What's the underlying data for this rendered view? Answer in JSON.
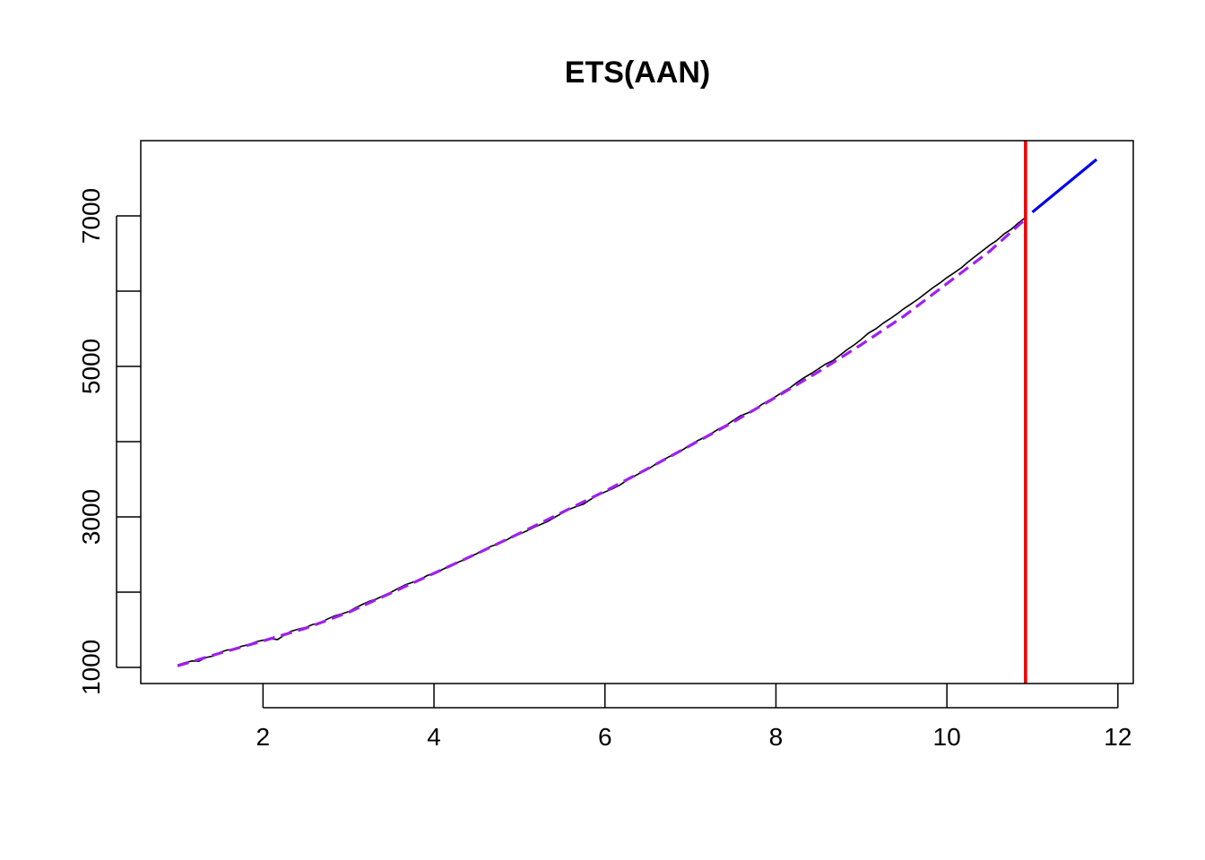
{
  "chart_data": {
    "type": "line",
    "title": "ETS(AAN)",
    "xlabel": "",
    "ylabel": "",
    "xlim": [
      0.57,
      12.18
    ],
    "ylim": [
      785,
      8000
    ],
    "x_ticks": [
      2,
      4,
      6,
      8,
      10,
      12
    ],
    "y_ticks": [
      1000,
      2000,
      3000,
      4000,
      5000,
      6000,
      7000
    ],
    "y_tick_labels": [
      "1000",
      "3000",
      "5000",
      "7000"
    ],
    "grid": false,
    "series": [
      {
        "role": "actuals",
        "color": "#000000",
        "style": "solid",
        "x": [
          1.0,
          1.08,
          1.17,
          1.25,
          1.33,
          1.42,
          1.5,
          1.58,
          1.67,
          1.75,
          1.83,
          1.92,
          2.0,
          2.08,
          2.17,
          2.25,
          2.33,
          2.42,
          2.5,
          2.58,
          2.67,
          2.75,
          2.83,
          2.92,
          3.0,
          3.08,
          3.17,
          3.25,
          3.33,
          3.42,
          3.5,
          3.58,
          3.67,
          3.75,
          3.83,
          3.92,
          4.0,
          4.08,
          4.17,
          4.25,
          4.33,
          4.42,
          4.5,
          4.58,
          4.67,
          4.75,
          4.83,
          4.92,
          5.0,
          5.08,
          5.17,
          5.25,
          5.33,
          5.42,
          5.5,
          5.58,
          5.67,
          5.75,
          5.83,
          5.92,
          6.0,
          6.08,
          6.17,
          6.25,
          6.33,
          6.42,
          6.5,
          6.58,
          6.67,
          6.75,
          6.83,
          6.92,
          7.0,
          7.08,
          7.17,
          7.25,
          7.33,
          7.42,
          7.5,
          7.58,
          7.67,
          7.75,
          7.83,
          7.92,
          8.0,
          8.08,
          8.17,
          8.25,
          8.33,
          8.42,
          8.5,
          8.58,
          8.67,
          8.75,
          8.83,
          8.92,
          9.0,
          9.08,
          9.17,
          9.25,
          9.33,
          9.42,
          9.5,
          9.58,
          9.67,
          9.75,
          9.83,
          9.92,
          10.0,
          10.08,
          10.17,
          10.25,
          10.33,
          10.42,
          10.5,
          10.58,
          10.67,
          10.75,
          10.83,
          10.92
        ],
        "y": [
          1030,
          1060,
          1085,
          1080,
          1130,
          1150,
          1200,
          1230,
          1240,
          1280,
          1300,
          1340,
          1360,
          1380,
          1370,
          1430,
          1480,
          1510,
          1530,
          1570,
          1590,
          1640,
          1680,
          1710,
          1740,
          1790,
          1840,
          1880,
          1910,
          1960,
          2000,
          2050,
          2100,
          2130,
          2160,
          2220,
          2250,
          2290,
          2340,
          2380,
          2420,
          2470,
          2510,
          2560,
          2610,
          2640,
          2680,
          2740,
          2770,
          2810,
          2860,
          2900,
          2940,
          3000,
          3050,
          3100,
          3140,
          3170,
          3230,
          3290,
          3330,
          3370,
          3420,
          3480,
          3530,
          3590,
          3630,
          3690,
          3750,
          3800,
          3840,
          3900,
          3960,
          4010,
          4060,
          4110,
          4170,
          4220,
          4280,
          4340,
          4380,
          4420,
          4490,
          4550,
          4600,
          4660,
          4720,
          4790,
          4850,
          4910,
          4970,
          5030,
          5080,
          5150,
          5220,
          5290,
          5360,
          5440,
          5500,
          5570,
          5630,
          5700,
          5770,
          5830,
          5900,
          5970,
          6040,
          6110,
          6180,
          6240,
          6310,
          6390,
          6460,
          6540,
          6610,
          6670,
          6760,
          6820,
          6900,
          6980
        ]
      },
      {
        "role": "fitted",
        "color": "#a020f0",
        "style": "dashed",
        "x": [
          1.0,
          1.5,
          2.0,
          2.5,
          3.0,
          3.5,
          4.0,
          4.5,
          5.0,
          5.5,
          6.0,
          6.5,
          7.0,
          7.5,
          8.0,
          8.5,
          9.0,
          9.5,
          10.0,
          10.5,
          10.92
        ],
        "y": [
          1020,
          1190,
          1350,
          1520,
          1730,
          1990,
          2250,
          2510,
          2780,
          3060,
          3340,
          3640,
          3950,
          4260,
          4590,
          4930,
          5290,
          5670,
          6100,
          6530,
          6960
        ]
      },
      {
        "role": "forecast",
        "color": "#0000ee",
        "style": "solid",
        "x": [
          11.0,
          11.75
        ],
        "y": [
          7050,
          7750
        ]
      }
    ],
    "vertical_lines": [
      {
        "role": "forecast-origin",
        "x": 10.92,
        "color": "#ee0000"
      }
    ]
  }
}
